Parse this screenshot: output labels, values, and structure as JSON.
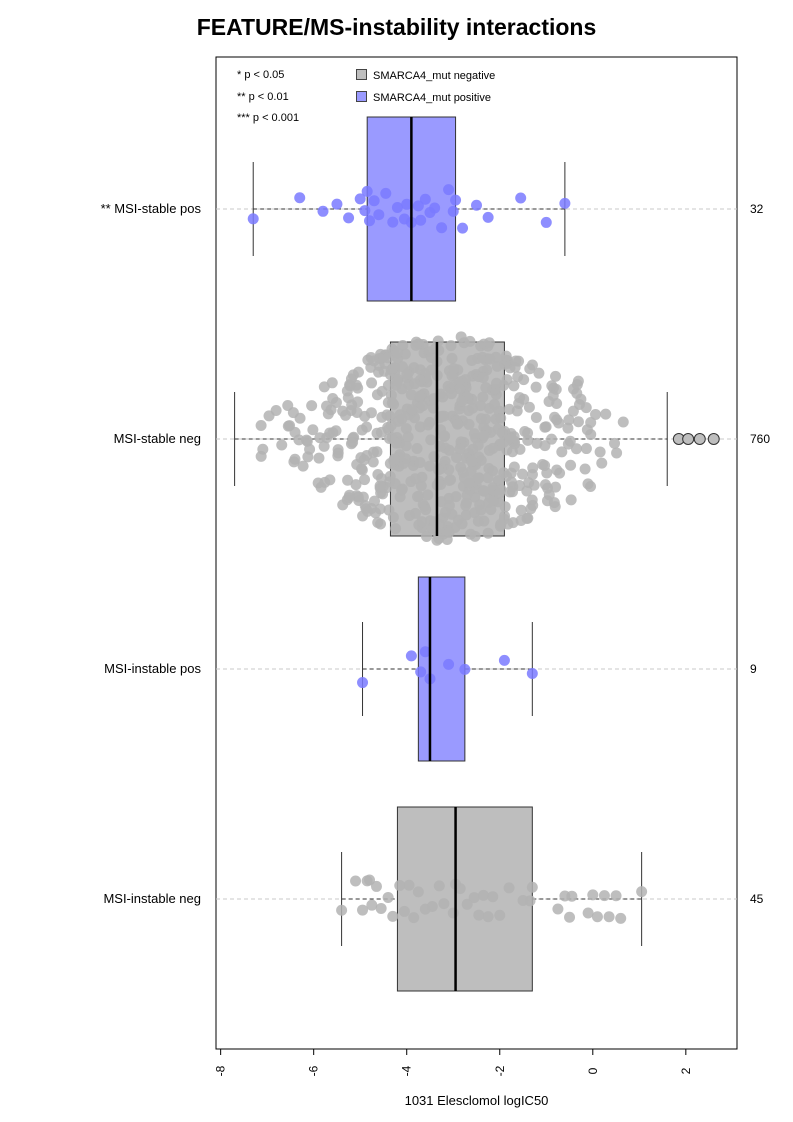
{
  "chart_data": {
    "type": "boxplot",
    "title": "FEATURE/MS-instability interactions",
    "xlabel": "1031 Elesclomol logIC50",
    "xlim": [
      -8.1,
      3.1
    ],
    "x_ticks": [
      "-8",
      "-6",
      "-4",
      "-2",
      "0",
      "2"
    ],
    "x_tick_values": [
      -8,
      -6,
      -4,
      -2,
      0,
      2
    ],
    "significance_notes": [
      "* p < 0.05",
      "** p < 0.01",
      "*** p < 0.001"
    ],
    "legend": [
      {
        "label": "SMARCA4_mut negative",
        "color": "#bebebe"
      },
      {
        "label": "SMARCA4_mut positive",
        "color": "#9a9aff"
      }
    ],
    "groups": [
      {
        "label": "** MSI-stable pos",
        "n": "32",
        "status": "positive",
        "box": {
          "q1": -4.85,
          "median": -3.9,
          "q3": -2.95,
          "whisker_low": -7.3,
          "whisker_high": -0.6
        },
        "points": [
          -7.3,
          -6.3,
          -5.8,
          -5.5,
          -5.25,
          -5.0,
          -4.9,
          -4.85,
          -4.8,
          -4.7,
          -4.6,
          -4.45,
          -4.3,
          -4.2,
          -4.05,
          -4.0,
          -3.9,
          -3.75,
          -3.7,
          -3.6,
          -3.5,
          -3.4,
          -3.25,
          -3.1,
          -3.0,
          -2.95,
          -2.8,
          -2.5,
          -2.25,
          -1.55,
          -1.0,
          -0.6
        ]
      },
      {
        "label": "MSI-stable neg",
        "n": "760",
        "status": "negative",
        "box": {
          "q1": -4.35,
          "median": -3.35,
          "q3": -1.9,
          "whisker_low": -7.7,
          "whisker_high": 1.6
        },
        "outliers": [
          1.85,
          2.05,
          2.3,
          2.6
        ],
        "points_range": [
          -7.7,
          1.6
        ]
      },
      {
        "label": "MSI-instable pos",
        "n": "9",
        "status": "positive",
        "box": {
          "q1": -3.75,
          "median": -3.5,
          "q3": -2.75,
          "whisker_low": -4.95,
          "whisker_high": -1.3
        },
        "points": [
          -4.95,
          -3.9,
          -3.7,
          -3.6,
          -3.5,
          -3.1,
          -2.75,
          -1.9,
          -1.3
        ]
      },
      {
        "label": "MSI-instable neg",
        "n": "45",
        "status": "negative",
        "box": {
          "q1": -4.2,
          "median": -2.95,
          "q3": -1.3,
          "whisker_low": -5.4,
          "whisker_high": 1.05
        },
        "points": [
          -5.4,
          -5.1,
          -4.95,
          -4.85,
          -4.75,
          -4.65,
          -4.55,
          -4.4,
          -4.3,
          -4.15,
          -4.05,
          -3.95,
          -3.85,
          -3.75,
          -3.6,
          -3.3,
          -3.0,
          -2.95,
          -2.7,
          -2.55,
          -2.45,
          -2.35,
          -2.25,
          -2.15,
          -2.0,
          -1.8,
          -1.35,
          -1.3,
          -0.75,
          -0.6,
          -0.5,
          -0.45,
          -0.1,
          0.0,
          0.1,
          0.25,
          0.35,
          0.5,
          0.6,
          1.05,
          -3.45,
          -2.85,
          -1.5,
          -4.8,
          -3.2
        ]
      }
    ]
  }
}
